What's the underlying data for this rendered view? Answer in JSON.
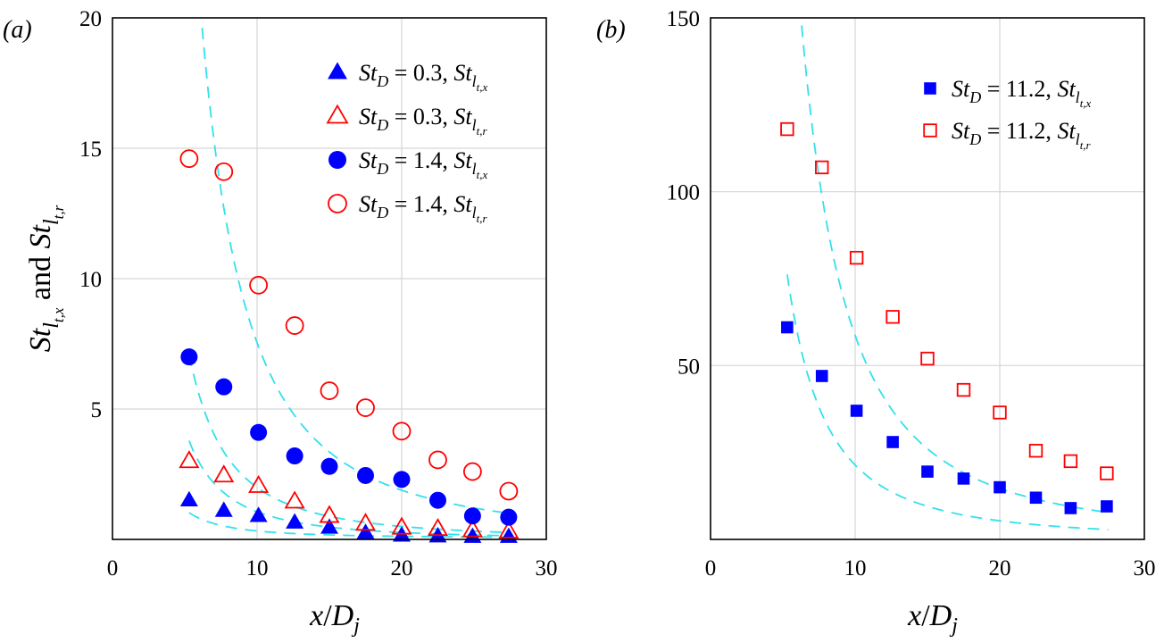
{
  "chart_data": [
    {
      "panel_label": "(a)",
      "type": "scatter",
      "xlabel": "x/Dj",
      "ylabel": "St_lt,x and St_lt,r",
      "xlim": [
        0,
        30
      ],
      "ylim": [
        0,
        20
      ],
      "xticks": [
        0,
        10,
        20,
        30
      ],
      "yticks": [
        5,
        10,
        15,
        20
      ],
      "grid": true,
      "legend_position": "top-right",
      "series": [
        {
          "name": "St_D = 0.3, St_lt,x",
          "marker": "triangle",
          "filled": true,
          "color": "#0000ff",
          "x": [
            5.3,
            7.7,
            10.1,
            12.6,
            15.0,
            17.5,
            20.0,
            22.5,
            24.9,
            27.4
          ],
          "y": [
            1.5,
            1.1,
            0.9,
            0.65,
            0.45,
            0.25,
            0.15,
            0.12,
            0.1,
            0.1
          ],
          "fit": {
            "a": 27.4,
            "c": 0.05,
            "x0": 5.3
          }
        },
        {
          "name": "St_D = 0.3, St_lt,r",
          "marker": "triangle",
          "filled": false,
          "color": "#ff0000",
          "x": [
            5.3,
            7.7,
            10.1,
            12.6,
            15.0,
            17.5,
            20.0,
            22.5,
            24.9,
            27.4
          ],
          "y": [
            3.0,
            2.45,
            2.05,
            1.45,
            0.9,
            0.6,
            0.45,
            0.4,
            0.35,
            0.3
          ],
          "fit": {
            "a": 106.2,
            "c": 0.0,
            "x0": 5.3
          }
        },
        {
          "name": "St_D = 1.4, St_lt,x",
          "marker": "circle",
          "filled": true,
          "color": "#0000ff",
          "x": [
            5.3,
            7.7,
            10.1,
            12.6,
            15.0,
            17.5,
            20.0,
            22.5,
            24.9,
            27.4
          ],
          "y": [
            7.0,
            5.85,
            4.1,
            3.2,
            2.8,
            2.45,
            2.3,
            1.5,
            0.9,
            0.85
          ],
          "fit": {
            "a": 199,
            "c": 0.0,
            "x0": 5.3
          }
        },
        {
          "name": "St_D = 1.4, St_lt,r",
          "marker": "circle",
          "filled": false,
          "color": "#ff0000",
          "x": [
            5.3,
            7.7,
            10.1,
            12.6,
            15.0,
            17.5,
            20.0,
            22.5,
            24.9,
            27.4
          ],
          "y": [
            14.6,
            14.1,
            9.75,
            8.2,
            5.7,
            5.05,
            4.15,
            3.05,
            2.6,
            1.85
          ],
          "fit": {
            "a": 754,
            "c": 0.0,
            "x0": 6.2
          }
        }
      ]
    },
    {
      "panel_label": "(b)",
      "type": "scatter",
      "xlabel": "x/Dj",
      "ylim": [
        0,
        150
      ],
      "xlim": [
        0,
        30
      ],
      "xticks": [
        0,
        10,
        20,
        30
      ],
      "yticks": [
        50,
        100,
        150
      ],
      "grid": true,
      "legend_position": "top-right",
      "series": [
        {
          "name": "St_D = 11.2, St_lt,x",
          "marker": "square",
          "filled": true,
          "color": "#0000ff",
          "x": [
            5.3,
            7.7,
            10.1,
            12.6,
            15.0,
            17.5,
            20.0,
            22.5,
            24.9,
            27.4
          ],
          "y": [
            61,
            47,
            37,
            28,
            19.5,
            17.5,
            15,
            12,
            9,
            9.5
          ],
          "fit": {
            "a": 2140,
            "c": 0.0,
            "x0": 5.3
          }
        },
        {
          "name": "St_D = 11.2, St_lt,r",
          "marker": "square",
          "filled": false,
          "color": "#ff0000",
          "x": [
            5.3,
            7.7,
            10.1,
            12.6,
            15.0,
            17.5,
            20.0,
            22.5,
            24.9,
            27.4
          ],
          "y": [
            118,
            107,
            81,
            64,
            52,
            43,
            36.5,
            25.5,
            22.5,
            19
          ],
          "fit": {
            "a": 5866,
            "c": 0.0,
            "x0": 6.2
          }
        }
      ]
    }
  ]
}
